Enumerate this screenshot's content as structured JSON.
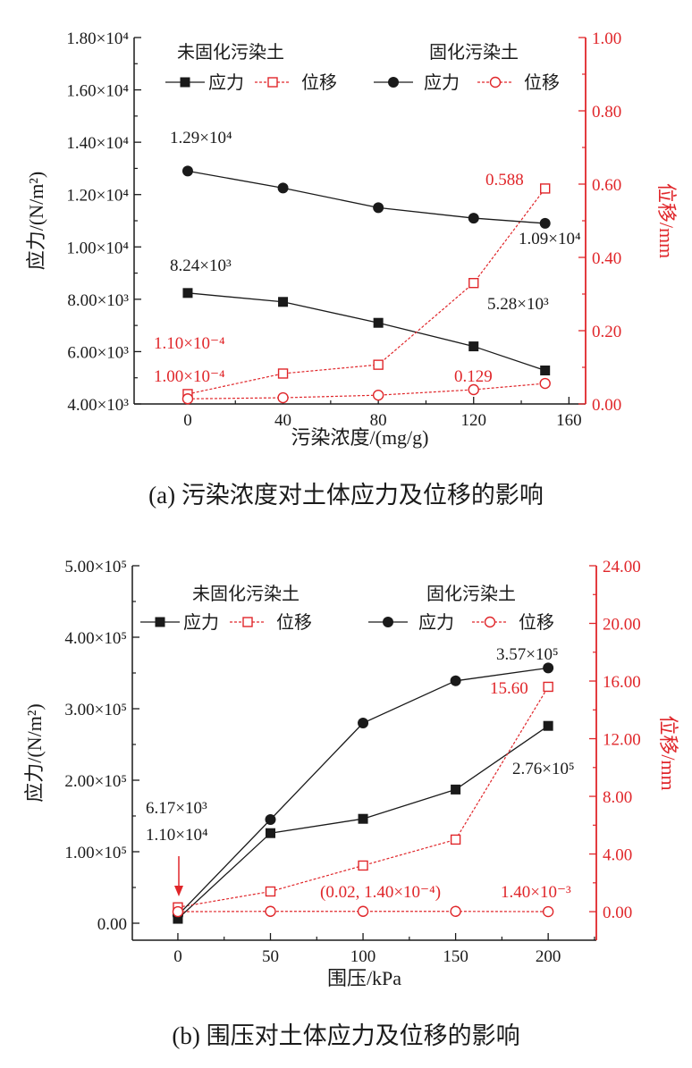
{
  "chart_data": [
    {
      "type": "line",
      "caption": "(a) 污染浓度对土体应力及位移的影响",
      "xlabel": "污染浓度/(mg/g)",
      "ylabel": "应力/(N/m²)",
      "y2label": "位移/mm",
      "x": [
        0,
        40,
        80,
        120,
        150
      ],
      "xlim": [
        -22.5,
        167
      ],
      "ylim": [
        4000,
        18000
      ],
      "y2lim": [
        0,
        1.0
      ],
      "xticks": [
        0,
        40,
        80,
        120,
        160
      ],
      "xtick_labels": [
        "0",
        "40",
        "80",
        "120",
        "160"
      ],
      "yticks": [
        4000,
        6000,
        8000,
        10000,
        12000,
        14000,
        16000,
        18000
      ],
      "ytick_labels": [
        "4.00×10³",
        "6.00×10³",
        "8.00×10³",
        "1.00×10⁴",
        "1.20×10⁴",
        "1.40×10⁴",
        "1.60×10⁴",
        "1.80×10⁴"
      ],
      "y2ticks": [
        0,
        0.2,
        0.4,
        0.6,
        0.8,
        1.0
      ],
      "y2tick_labels": [
        "0.00",
        "0.20",
        "0.40",
        "0.60",
        "0.80",
        "1.00"
      ],
      "legend": {
        "groups": [
          {
            "title": "未固化污染土",
            "stress": "应力",
            "disp": "位移"
          },
          {
            "title": "固化污染土",
            "stress": "应力",
            "disp": "位移"
          }
        ],
        "placement": "top"
      },
      "series": [
        {
          "group": 0,
          "kind": "stress",
          "axis": "left",
          "marker": "square-filled",
          "color": "#1a1a1a",
          "values": [
            8240,
            7900,
            7100,
            6200,
            5280
          ]
        },
        {
          "group": 0,
          "kind": "disp",
          "axis": "right",
          "marker": "square-open",
          "color": "#e0262a",
          "values": [
            0.027,
            0.083,
            0.107,
            0.33,
            0.588
          ]
        },
        {
          "group": 1,
          "kind": "stress",
          "axis": "left",
          "marker": "circle-filled",
          "color": "#1a1a1a",
          "values": [
            12900,
            12250,
            11500,
            11100,
            10900
          ]
        },
        {
          "group": 1,
          "kind": "disp",
          "axis": "right",
          "marker": "circle-open",
          "color": "#e0262a",
          "values": [
            0.014,
            0.017,
            0.024,
            0.039,
            0.056
          ]
        }
      ],
      "annotations": [
        {
          "text": "1.29×10⁴",
          "color": "#1a1a1a"
        },
        {
          "text": "8.24×10³",
          "color": "#1a1a1a"
        },
        {
          "text": "1.09×10⁴",
          "color": "#1a1a1a"
        },
        {
          "text": "5.28×10³",
          "color": "#1a1a1a"
        },
        {
          "text": "0.588",
          "color": "#e0262a"
        },
        {
          "text": "1.10×10⁻⁴",
          "color": "#e0262a"
        },
        {
          "text": "1.00×10⁻⁴",
          "color": "#e0262a"
        },
        {
          "text": "0.129",
          "color": "#e0262a"
        }
      ]
    },
    {
      "type": "line",
      "caption": "(b) 围压对土体应力及位移的影响",
      "xlabel": "围压/kPa",
      "ylabel": "应力/(N/m²)",
      "y2label": "位移/mm",
      "x": [
        0,
        50,
        100,
        150,
        200
      ],
      "xlim": [
        -24.6,
        226
      ],
      "ylim": [
        -23750,
        500000
      ],
      "y2lim": [
        -1.98,
        24
      ],
      "xticks": [
        0,
        50,
        100,
        150,
        200
      ],
      "xtick_labels": [
        "0",
        "50",
        "100",
        "150",
        "200"
      ],
      "yticks": [
        0,
        100000,
        200000,
        300000,
        400000,
        500000
      ],
      "ytick_labels": [
        "0.00",
        "1.00×10⁵",
        "2.00×10⁵",
        "3.00×10⁵",
        "4.00×10⁵",
        "5.00×10⁵"
      ],
      "y2ticks": [
        0,
        4,
        8,
        12,
        16,
        20,
        24
      ],
      "y2tick_labels": [
        "0.00",
        "4.00",
        "8.00",
        "12.00",
        "16.00",
        "20.00",
        "24.00"
      ],
      "legend": {
        "groups": [
          {
            "title": "未固化污染土",
            "stress": "应力",
            "disp": "位移"
          },
          {
            "title": "固化污染土",
            "stress": "应力",
            "disp": "位移"
          }
        ],
        "placement": "top"
      },
      "series": [
        {
          "group": 0,
          "kind": "stress",
          "axis": "left",
          "marker": "square-filled",
          "color": "#1a1a1a",
          "values": [
            6170,
            126000,
            146000,
            187000,
            276000
          ]
        },
        {
          "group": 0,
          "kind": "disp",
          "axis": "right",
          "marker": "square-open",
          "color": "#e0262a",
          "values": [
            0.3,
            1.4,
            3.2,
            5.0,
            15.6
          ]
        },
        {
          "group": 1,
          "kind": "stress",
          "axis": "left",
          "marker": "circle-filled",
          "color": "#1a1a1a",
          "values": [
            11000,
            145000,
            280000,
            339000,
            357000
          ]
        },
        {
          "group": 1,
          "kind": "disp",
          "axis": "right",
          "marker": "circle-open",
          "color": "#e0262a",
          "values": [
            0.00014,
            0.02,
            0.02,
            0.02,
            0.0014
          ]
        }
      ],
      "annotations": [
        {
          "text": "3.57×10⁵",
          "color": "#1a1a1a"
        },
        {
          "text": "15.60",
          "color": "#e0262a"
        },
        {
          "text": "2.76×10⁵",
          "color": "#1a1a1a"
        },
        {
          "text": "6.17×10³",
          "color": "#1a1a1a"
        },
        {
          "text": "1.10×10⁴",
          "color": "#1a1a1a"
        },
        {
          "text": "(0.02, 1.40×10⁻⁴)",
          "color": "#e0262a"
        },
        {
          "text": "1.40×10⁻³",
          "color": "#e0262a"
        }
      ]
    }
  ]
}
